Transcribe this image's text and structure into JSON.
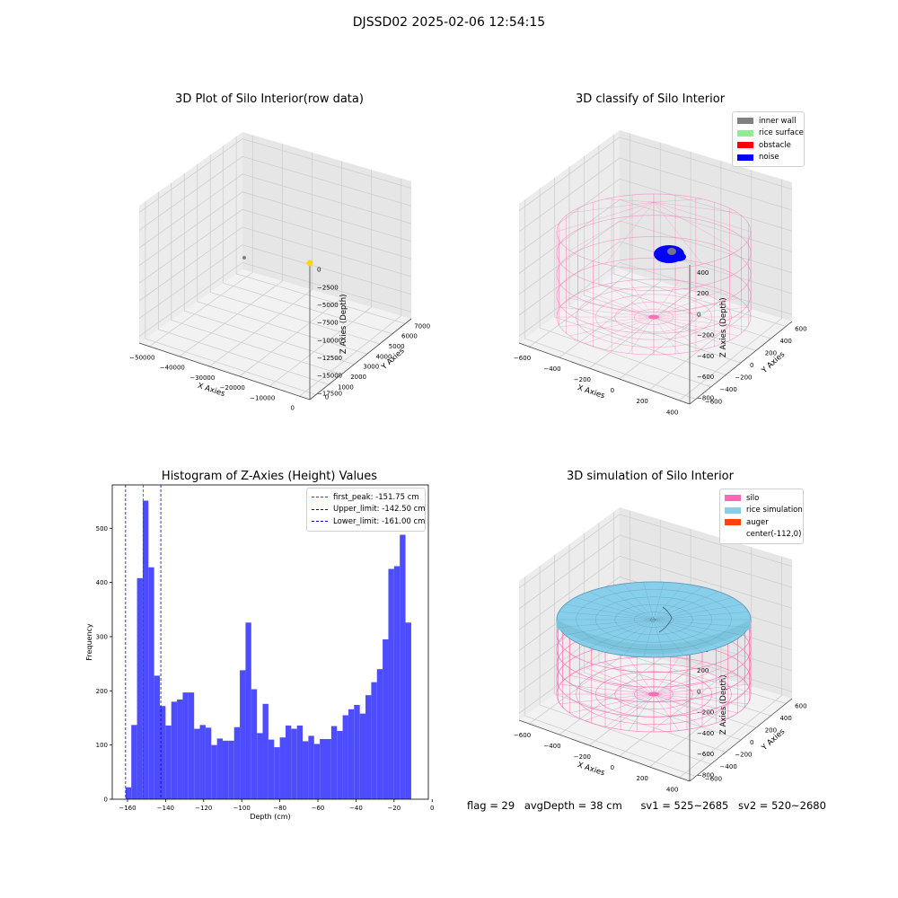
{
  "figure": {
    "title": "DJSSD02 2025-02-06 12:54:15",
    "footer": {
      "flag": "flag = 29",
      "avg_depth": "avgDepth = 38 cm",
      "sv1": "sv1 = 525~2685",
      "sv2": "sv2 = 520~2680"
    }
  },
  "colors": {
    "hist_bar": "#4d4dff",
    "first_peak_line": "#ff0000",
    "limit_line": "#0000cc",
    "inner_wall": "#808080",
    "rice_surface": "#90ee90",
    "obstacle": "#ff0000",
    "noise": "#0000ff",
    "silo": "#ff69b4",
    "rice_simulation": "#87ceeb",
    "auger": "#ff4500",
    "raw_point": "#ffd700"
  },
  "chart_data": [
    {
      "type": "scatter",
      "title": "3D Plot of Silo Interior(row data)",
      "xlabel": "X Axies",
      "ylabel": "Y Axies",
      "zlabel": "Z Axies (Depth)",
      "x_ticks": [
        "−50000",
        "−40000",
        "−30000",
        "−20000",
        "−10000",
        "0"
      ],
      "y_ticks": [
        "0",
        "1000",
        "2000",
        "3000",
        "4000",
        "5000",
        "6000",
        "7000"
      ],
      "z_ticks": [
        "0",
        "−2500",
        "−5000",
        "−7500",
        "−10000",
        "−12500",
        "−15000",
        "−17500"
      ],
      "points": [
        {
          "name": "grey point",
          "color": "#808080"
        },
        {
          "name": "yellow point",
          "color": "#ffd700"
        }
      ]
    },
    {
      "type": "scatter",
      "title": "3D classify of Silo Interior",
      "xlabel": "X Axies",
      "ylabel": "Y Axies",
      "zlabel": "Z Axies (Depth)",
      "x_ticks": [
        "−600",
        "−400",
        "−200",
        "0",
        "200",
        "400"
      ],
      "y_ticks": [
        "−600",
        "−400",
        "−200",
        "0",
        "200",
        "400",
        "600"
      ],
      "z_ticks": [
        "400",
        "200",
        "0",
        "−200",
        "−400",
        "−600",
        "−800"
      ],
      "legend": [
        "inner wall",
        "rice surface",
        "obstacle",
        "noise"
      ],
      "legend_position": "upper right"
    },
    {
      "type": "bar",
      "title": "Histogram of Z-Axies (Height) Values",
      "xlabel": "Depth (cm)",
      "ylabel": "Frequency",
      "xlim": [
        -168,
        -2
      ],
      "ylim": [
        0,
        580
      ],
      "x_ticks": [
        -160,
        -140,
        -120,
        -100,
        -80,
        -60,
        -40,
        -20,
        0
      ],
      "y_ticks": [
        0,
        100,
        200,
        300,
        400,
        500
      ],
      "bin_start": -161.0,
      "bin_width": 3.0,
      "values": [
        22,
        137,
        408,
        551,
        428,
        228,
        172,
        136,
        180,
        184,
        197,
        197,
        130,
        137,
        132,
        100,
        112,
        108,
        108,
        133,
        238,
        326,
        203,
        122,
        176,
        110,
        96,
        114,
        136,
        130,
        136,
        107,
        117,
        102,
        111,
        111,
        135,
        126,
        155,
        166,
        174,
        158,
        192,
        216,
        240,
        295,
        425,
        430,
        488,
        326
      ],
      "vlines": [
        {
          "label": "first_peak: -151.75 cm",
          "x": -151.75,
          "color": "#ff0000"
        },
        {
          "label": "Upper_limit: -142.50 cm",
          "x": -142.5,
          "color": "#0000cc"
        },
        {
          "label": "Lower_limit: -161.00 cm",
          "x": -161.0,
          "color": "#0000cc"
        }
      ],
      "legend_position": "upper right"
    },
    {
      "type": "scatter",
      "title": "3D simulation of Silo Interior",
      "xlabel": "X Axies",
      "ylabel": "Y Axies",
      "zlabel": "Z Axies (Depth)",
      "x_ticks": [
        "−600",
        "−400",
        "−200",
        "0",
        "200",
        "400"
      ],
      "y_ticks": [
        "−600",
        "−400",
        "−200",
        "0",
        "200",
        "400",
        "600"
      ],
      "z_ticks": [
        "400",
        "200",
        "0",
        "−200",
        "−400",
        "−600",
        "−800"
      ],
      "legend": [
        "silo",
        "rice simulation",
        "auger",
        "center(-112,0)"
      ],
      "legend_position": "upper right"
    }
  ]
}
